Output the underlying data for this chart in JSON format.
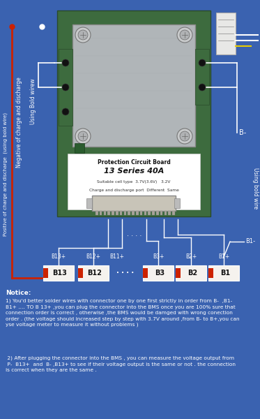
{
  "bg_color": "#3a62b0",
  "fig_width": 3.73,
  "fig_height": 6.0,
  "notice_title": "Notice:",
  "notice_text1": "1) You'd better solder wires with connector one by one first strictly in order from B-  ,B1-\nB1+ .... TO B 13+ ,you can plug the connector into the BMS once you are 100% sure that\nconnection order is correct , otherwise ,the BMS would be damged with wrong conection\norder . (the voltage should increased step by step with 3.7V around ,from B- to B+,you can\nyse voltage meter to measure it without problems )",
  "notice_text2": " 2) After plugging the connector into the BMS , you can measure the voltage output from\n P-  B13+  and  B- ,B13+ to see if their voltage output is the same or not . the connection\nis correct when they are the same .",
  "left_text1": "Positive of charge and discharge  (using bold wire)",
  "left_text2": "Negative of charge and discharge",
  "left_text3": "Using Bold wirew",
  "right_text": "Using bold wire",
  "label_Bminus": "B-",
  "label_B1minus": "B1-",
  "labels_plus": [
    "B13+",
    "B12+",
    "B11+",
    "B3+",
    "B2+",
    "B1+"
  ],
  "labels_box": [
    "B13",
    "B12",
    "· · · ·",
    "B3",
    "B2",
    "B1"
  ],
  "pcb_label1": "Protection Circuit Board",
  "pcb_label2": "13 Series 40A",
  "pcb_label3": "Suitable cell type  3.7V(3.6V)   3.2V",
  "pcb_label4": "Charge and discharge port  Different  Same",
  "white_color": "#ffffff",
  "red_color": "#cc2200",
  "box_fill": "#f5f2ee",
  "pcb_metal": "#b0b5b8",
  "pcb_green": "#3d6b3e",
  "dark_text": "#111111",
  "dots_text": "· · · ·",
  "connector_white": "#e8e8e8"
}
